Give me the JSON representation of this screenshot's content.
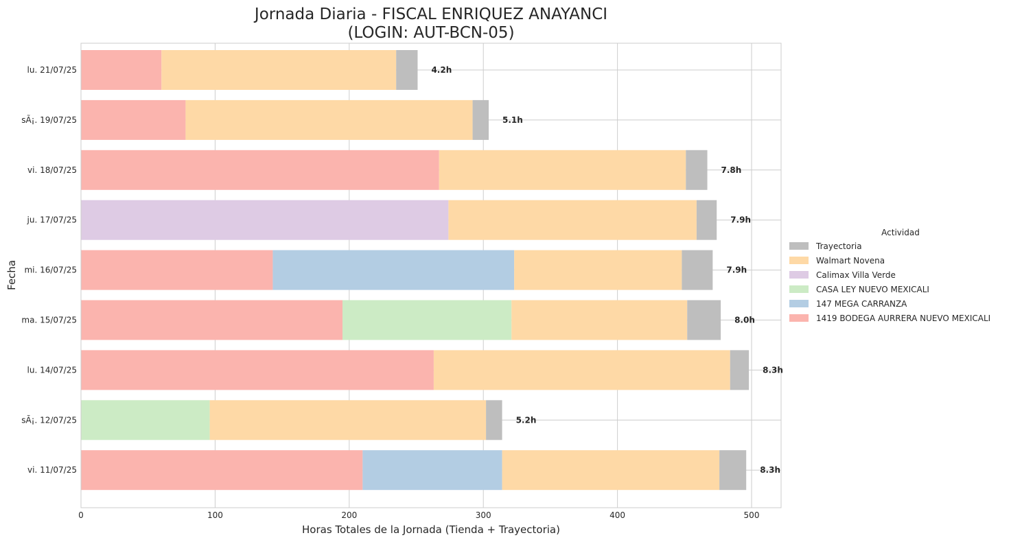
{
  "chart_data": {
    "type": "bar",
    "orientation": "horizontal",
    "stacked": true,
    "title": "Jornada Diaria - FISCAL ENRIQUEZ ANAYANCI\n(LOGIN: AUT-BCN-05)",
    "xlabel": "Horas Totales de la Jornada (Tienda + Trayectoria)",
    "ylabel": "Fecha",
    "xlim": [
      0,
      522
    ],
    "xticks": [
      0,
      100,
      200,
      300,
      400,
      500
    ],
    "grid": true,
    "legend": {
      "title": "Actividad",
      "placement": "center-right"
    },
    "categories": [
      "lu. 21/07/25",
      "sÃ¡. 19/07/25",
      "vi. 18/07/25",
      "ju. 17/07/25",
      "mi. 16/07/25",
      "ma. 15/07/25",
      "lu. 14/07/25",
      "sÃ¡. 12/07/25",
      "vi. 11/07/25"
    ],
    "series": [
      {
        "name": "1419 BODEGA AURRERA NUEVO MEXICALI",
        "color": "#fbb4ae",
        "values": [
          60,
          78,
          267,
          0,
          143,
          195,
          263,
          0,
          210
        ]
      },
      {
        "name": "147 MEGA CARRANZA",
        "color": "#b3cde3",
        "values": [
          0,
          0,
          0,
          0,
          180,
          0,
          0,
          0,
          104
        ]
      },
      {
        "name": "CASA LEY NUEVO MEXICALI",
        "color": "#ccebc5",
        "values": [
          0,
          0,
          0,
          0,
          0,
          126,
          0,
          96,
          0
        ]
      },
      {
        "name": "Calimax Villa Verde",
        "color": "#decbe4",
        "values": [
          0,
          0,
          0,
          274,
          0,
          0,
          0,
          0,
          0
        ]
      },
      {
        "name": "Walmart Novena",
        "color": "#fed9a6",
        "values": [
          175,
          214,
          184,
          185,
          125,
          131,
          221,
          206,
          162
        ]
      },
      {
        "name": "Trayectoria",
        "color": "#bebebe",
        "values": [
          16,
          12,
          16,
          15,
          23,
          25,
          14,
          12,
          20
        ]
      }
    ],
    "legend_order": [
      "Trayectoria",
      "Walmart Novena",
      "Calimax Villa Verde",
      "CASA LEY NUEVO MEXICALI",
      "147 MEGA CARRANZA",
      "1419 BODEGA AURRERA NUEVO MEXICALI"
    ],
    "totals": [
      "4.2h",
      "5.1h",
      "7.8h",
      "7.9h",
      "7.9h",
      "8.0h",
      "8.3h",
      "5.2h",
      "8.3h"
    ]
  }
}
